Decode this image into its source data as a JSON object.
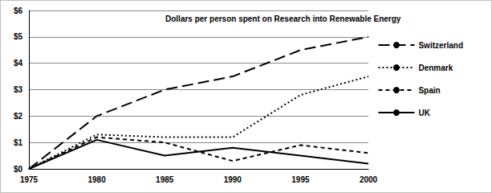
{
  "chart_data": {
    "type": "line",
    "title": "Dollars per person spent on Research into Renewable Energy",
    "categories": [
      "1975",
      "1980",
      "1985",
      "1990",
      "1995",
      "2000"
    ],
    "series": [
      {
        "name": "Switzerland",
        "color": "#000000",
        "line_style": "long_dashed",
        "values": [
          0,
          2,
          3,
          3.5,
          4.5,
          5
        ]
      },
      {
        "name": "Denmark",
        "color": "#000000",
        "line_style": "dotted",
        "values": [
          0,
          1.3,
          1.2,
          1.2,
          2.8,
          3.5
        ]
      },
      {
        "name": "Spain",
        "color": "#000000",
        "line_style": "dashed",
        "values": [
          0,
          1.2,
          1.0,
          0.3,
          0.9,
          0.6
        ]
      },
      {
        "name": "UK",
        "color": "#000000",
        "line_style": "solid",
        "values": [
          0,
          1.1,
          0.5,
          0.8,
          0.5,
          0.2
        ]
      }
    ],
    "ylim": [
      0,
      6
    ],
    "yticks": [
      {
        "value": 0,
        "label": "$0"
      },
      {
        "value": 1,
        "label": "$1"
      },
      {
        "value": 2,
        "label": "$2"
      },
      {
        "value": 3,
        "label": "$3"
      },
      {
        "value": 4,
        "label": "$4"
      },
      {
        "value": 5,
        "label": "$5"
      },
      {
        "value": 6,
        "label": "$6"
      }
    ],
    "grid": true,
    "legend": "right"
  }
}
